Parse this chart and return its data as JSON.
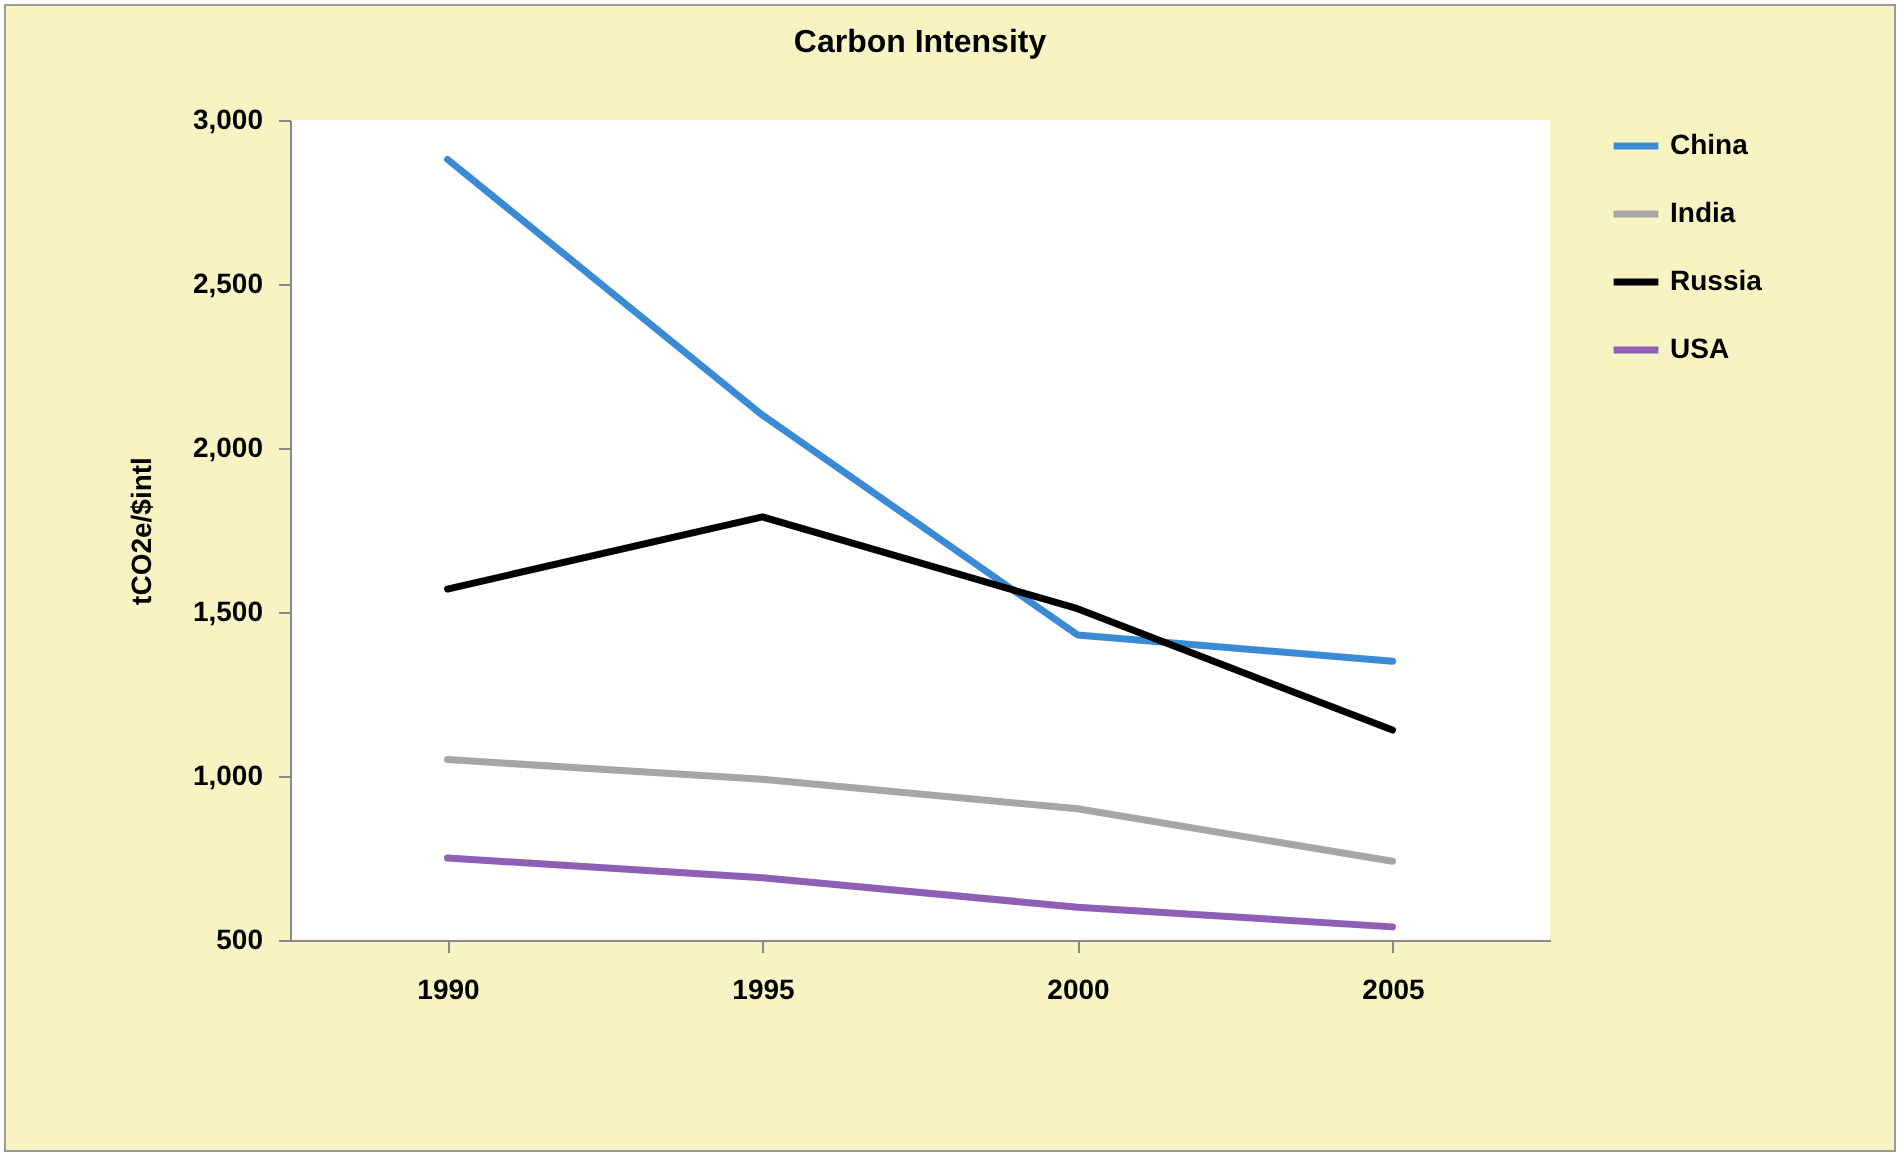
{
  "chart_data": {
    "type": "line",
    "title": "Carbon Intensity",
    "ylabel": "tCO2e/$intl",
    "categories": [
      "1990",
      "1995",
      "2000",
      "2005"
    ],
    "series": [
      {
        "name": "China",
        "color": "#3b8bd4",
        "values": [
          2880,
          2100,
          1430,
          1350
        ]
      },
      {
        "name": "India",
        "color": "#a6a6a6",
        "values": [
          1050,
          990,
          900,
          740
        ]
      },
      {
        "name": "Russia",
        "color": "#000000",
        "values": [
          1570,
          1790,
          1510,
          1140
        ]
      },
      {
        "name": "USA",
        "color": "#8e5fb5",
        "values": [
          750,
          690,
          600,
          540
        ]
      }
    ],
    "ylim": [
      500,
      3000
    ],
    "yticks": [
      500,
      {
        "value": 1000,
        "label": "1,000"
      },
      {
        "value": 1500,
        "label": "1,500"
      },
      {
        "value": 2000,
        "label": "2,000"
      },
      {
        "value": 2500,
        "label": "2,500"
      },
      {
        "value": 3000,
        "label": "3,000"
      }
    ],
    "grid": false,
    "legend": "right",
    "marker": "none",
    "line_style": "solid"
  }
}
